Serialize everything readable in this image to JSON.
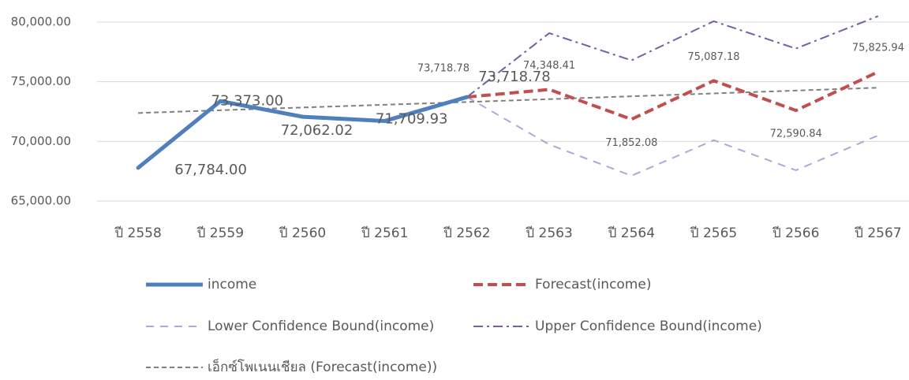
{
  "chart_data": {
    "type": "line",
    "categories": [
      "ปี 2558",
      "ปี 2559",
      "ปี 2560",
      "ปี 2561",
      "ปี 2562",
      "ปี 2563",
      "ปี 2564",
      "ปี 2565",
      "ปี 2566",
      "ปี 2567"
    ],
    "ylim": [
      65000,
      80000
    ],
    "yticks": [
      {
        "value": 65000,
        "label": "65,000.00"
      },
      {
        "value": 70000,
        "label": "70,000.00"
      },
      {
        "value": 75000,
        "label": "75,000.00"
      },
      {
        "value": 80000,
        "label": "80,000.00"
      }
    ],
    "grid": true,
    "legend": "bottom",
    "series": [
      {
        "name": "income",
        "color": "#4f7fbd",
        "values": [
          67784,
          73373,
          72062.02,
          71709.93,
          73718.78,
          null,
          null,
          null,
          null,
          null
        ],
        "value_labels": [
          "67,784.00",
          "73,373.00",
          "72,062.02",
          "71,709.93",
          "73,718.78",
          null,
          null,
          null,
          null,
          null
        ]
      },
      {
        "name": "Forecast(income)",
        "color": "#c0504d",
        "values": [
          null,
          null,
          null,
          null,
          73718.78,
          74348.41,
          71852.08,
          75087.18,
          72590.84,
          75825.94
        ],
        "value_labels": [
          null,
          null,
          null,
          null,
          "73,718.78",
          "74,348.41",
          "71,852.08",
          "75,087.18",
          "72,590.84",
          "75,825.94"
        ]
      },
      {
        "name": "Lower Confidence Bound(income)",
        "color": "#b3a6d4",
        "values": [
          null,
          null,
          null,
          null,
          73718.78,
          69740,
          67120,
          70100,
          67580,
          70500
        ]
      },
      {
        "name": "Upper Confidence Bound(income)",
        "color": "#7a5f9e",
        "values": [
          null,
          null,
          null,
          null,
          73718.78,
          79070,
          76790,
          80070,
          77780,
          80500
        ]
      },
      {
        "name": "เอ็กซ์โพเนนเชียล (Forecast(income))",
        "color": "#7f7f7f",
        "values": [
          72380,
          72610,
          72840,
          73070,
          73300,
          73540,
          73780,
          74020,
          74260,
          74500
        ]
      }
    ]
  }
}
